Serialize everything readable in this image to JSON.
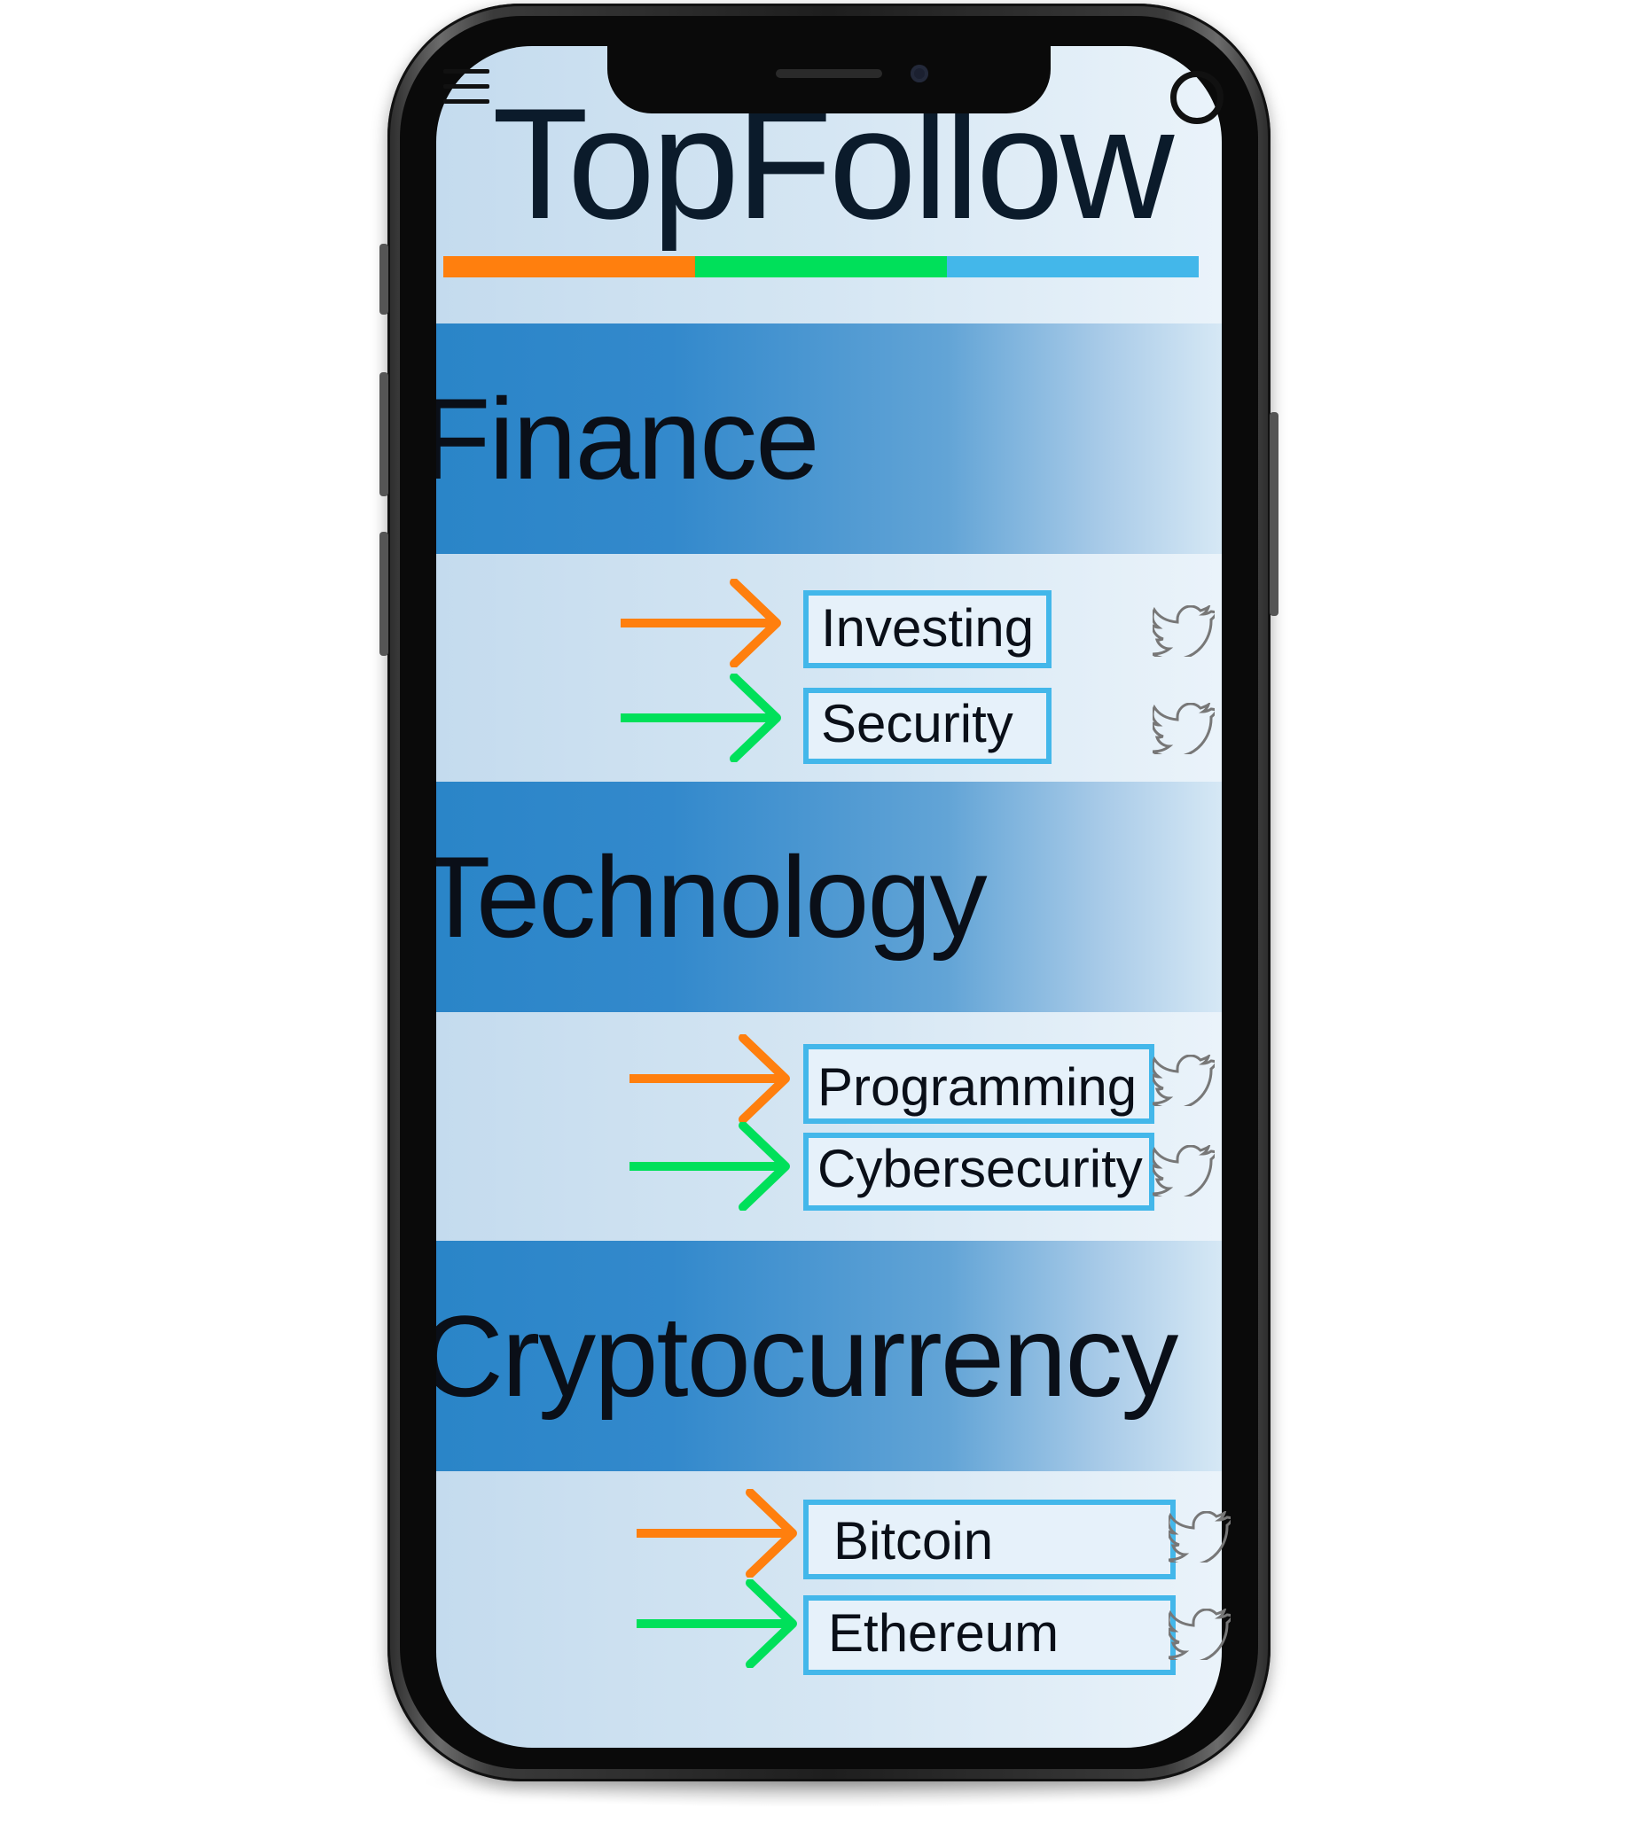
{
  "app": {
    "title": "TopFollow"
  },
  "colors": {
    "orange": "#ff7f0e",
    "green": "#00e05a",
    "blue": "#43b7ea",
    "header": "#2a85c8"
  },
  "icons": {
    "menu": "menu-icon",
    "search": "search-icon",
    "twitter": "twitter-bird-icon",
    "arrow": "arrow-right-icon"
  },
  "categories": [
    {
      "name": "Finance",
      "items": [
        "Investing",
        "Security"
      ]
    },
    {
      "name": "Technology",
      "items": [
        "Programming",
        "Cybersecurity"
      ]
    },
    {
      "name": "Cryptocurrency",
      "items": [
        "Bitcoin",
        "Ethereum"
      ]
    }
  ]
}
